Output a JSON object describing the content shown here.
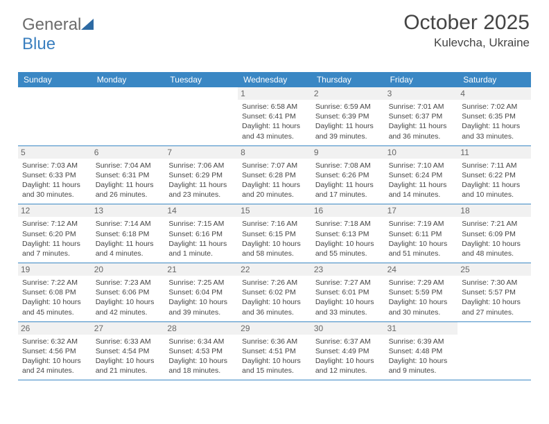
{
  "logo": {
    "text1": "General",
    "text2": "Blue"
  },
  "title": "October 2025",
  "location": "Kulevcha, Ukraine",
  "colors": {
    "header_bg": "#3a87c4",
    "header_fg": "#ffffff",
    "daynum_bg": "#f1f1f1",
    "border": "#3a87c4",
    "text": "#444444",
    "logo_gray": "#6b6b6b",
    "logo_blue": "#3a7fbf"
  },
  "day_headers": [
    "Sunday",
    "Monday",
    "Tuesday",
    "Wednesday",
    "Thursday",
    "Friday",
    "Saturday"
  ],
  "weeks": [
    [
      {
        "n": "",
        "sr": "",
        "ss": "",
        "dl": ""
      },
      {
        "n": "",
        "sr": "",
        "ss": "",
        "dl": ""
      },
      {
        "n": "",
        "sr": "",
        "ss": "",
        "dl": ""
      },
      {
        "n": "1",
        "sr": "Sunrise: 6:58 AM",
        "ss": "Sunset: 6:41 PM",
        "dl": "Daylight: 11 hours and 43 minutes."
      },
      {
        "n": "2",
        "sr": "Sunrise: 6:59 AM",
        "ss": "Sunset: 6:39 PM",
        "dl": "Daylight: 11 hours and 39 minutes."
      },
      {
        "n": "3",
        "sr": "Sunrise: 7:01 AM",
        "ss": "Sunset: 6:37 PM",
        "dl": "Daylight: 11 hours and 36 minutes."
      },
      {
        "n": "4",
        "sr": "Sunrise: 7:02 AM",
        "ss": "Sunset: 6:35 PM",
        "dl": "Daylight: 11 hours and 33 minutes."
      }
    ],
    [
      {
        "n": "5",
        "sr": "Sunrise: 7:03 AM",
        "ss": "Sunset: 6:33 PM",
        "dl": "Daylight: 11 hours and 30 minutes."
      },
      {
        "n": "6",
        "sr": "Sunrise: 7:04 AM",
        "ss": "Sunset: 6:31 PM",
        "dl": "Daylight: 11 hours and 26 minutes."
      },
      {
        "n": "7",
        "sr": "Sunrise: 7:06 AM",
        "ss": "Sunset: 6:29 PM",
        "dl": "Daylight: 11 hours and 23 minutes."
      },
      {
        "n": "8",
        "sr": "Sunrise: 7:07 AM",
        "ss": "Sunset: 6:28 PM",
        "dl": "Daylight: 11 hours and 20 minutes."
      },
      {
        "n": "9",
        "sr": "Sunrise: 7:08 AM",
        "ss": "Sunset: 6:26 PM",
        "dl": "Daylight: 11 hours and 17 minutes."
      },
      {
        "n": "10",
        "sr": "Sunrise: 7:10 AM",
        "ss": "Sunset: 6:24 PM",
        "dl": "Daylight: 11 hours and 14 minutes."
      },
      {
        "n": "11",
        "sr": "Sunrise: 7:11 AM",
        "ss": "Sunset: 6:22 PM",
        "dl": "Daylight: 11 hours and 10 minutes."
      }
    ],
    [
      {
        "n": "12",
        "sr": "Sunrise: 7:12 AM",
        "ss": "Sunset: 6:20 PM",
        "dl": "Daylight: 11 hours and 7 minutes."
      },
      {
        "n": "13",
        "sr": "Sunrise: 7:14 AM",
        "ss": "Sunset: 6:18 PM",
        "dl": "Daylight: 11 hours and 4 minutes."
      },
      {
        "n": "14",
        "sr": "Sunrise: 7:15 AM",
        "ss": "Sunset: 6:16 PM",
        "dl": "Daylight: 11 hours and 1 minute."
      },
      {
        "n": "15",
        "sr": "Sunrise: 7:16 AM",
        "ss": "Sunset: 6:15 PM",
        "dl": "Daylight: 10 hours and 58 minutes."
      },
      {
        "n": "16",
        "sr": "Sunrise: 7:18 AM",
        "ss": "Sunset: 6:13 PM",
        "dl": "Daylight: 10 hours and 55 minutes."
      },
      {
        "n": "17",
        "sr": "Sunrise: 7:19 AM",
        "ss": "Sunset: 6:11 PM",
        "dl": "Daylight: 10 hours and 51 minutes."
      },
      {
        "n": "18",
        "sr": "Sunrise: 7:21 AM",
        "ss": "Sunset: 6:09 PM",
        "dl": "Daylight: 10 hours and 48 minutes."
      }
    ],
    [
      {
        "n": "19",
        "sr": "Sunrise: 7:22 AM",
        "ss": "Sunset: 6:08 PM",
        "dl": "Daylight: 10 hours and 45 minutes."
      },
      {
        "n": "20",
        "sr": "Sunrise: 7:23 AM",
        "ss": "Sunset: 6:06 PM",
        "dl": "Daylight: 10 hours and 42 minutes."
      },
      {
        "n": "21",
        "sr": "Sunrise: 7:25 AM",
        "ss": "Sunset: 6:04 PM",
        "dl": "Daylight: 10 hours and 39 minutes."
      },
      {
        "n": "22",
        "sr": "Sunrise: 7:26 AM",
        "ss": "Sunset: 6:02 PM",
        "dl": "Daylight: 10 hours and 36 minutes."
      },
      {
        "n": "23",
        "sr": "Sunrise: 7:27 AM",
        "ss": "Sunset: 6:01 PM",
        "dl": "Daylight: 10 hours and 33 minutes."
      },
      {
        "n": "24",
        "sr": "Sunrise: 7:29 AM",
        "ss": "Sunset: 5:59 PM",
        "dl": "Daylight: 10 hours and 30 minutes."
      },
      {
        "n": "25",
        "sr": "Sunrise: 7:30 AM",
        "ss": "Sunset: 5:57 PM",
        "dl": "Daylight: 10 hours and 27 minutes."
      }
    ],
    [
      {
        "n": "26",
        "sr": "Sunrise: 6:32 AM",
        "ss": "Sunset: 4:56 PM",
        "dl": "Daylight: 10 hours and 24 minutes."
      },
      {
        "n": "27",
        "sr": "Sunrise: 6:33 AM",
        "ss": "Sunset: 4:54 PM",
        "dl": "Daylight: 10 hours and 21 minutes."
      },
      {
        "n": "28",
        "sr": "Sunrise: 6:34 AM",
        "ss": "Sunset: 4:53 PM",
        "dl": "Daylight: 10 hours and 18 minutes."
      },
      {
        "n": "29",
        "sr": "Sunrise: 6:36 AM",
        "ss": "Sunset: 4:51 PM",
        "dl": "Daylight: 10 hours and 15 minutes."
      },
      {
        "n": "30",
        "sr": "Sunrise: 6:37 AM",
        "ss": "Sunset: 4:49 PM",
        "dl": "Daylight: 10 hours and 12 minutes."
      },
      {
        "n": "31",
        "sr": "Sunrise: 6:39 AM",
        "ss": "Sunset: 4:48 PM",
        "dl": "Daylight: 10 hours and 9 minutes."
      },
      {
        "n": "",
        "sr": "",
        "ss": "",
        "dl": ""
      }
    ]
  ]
}
